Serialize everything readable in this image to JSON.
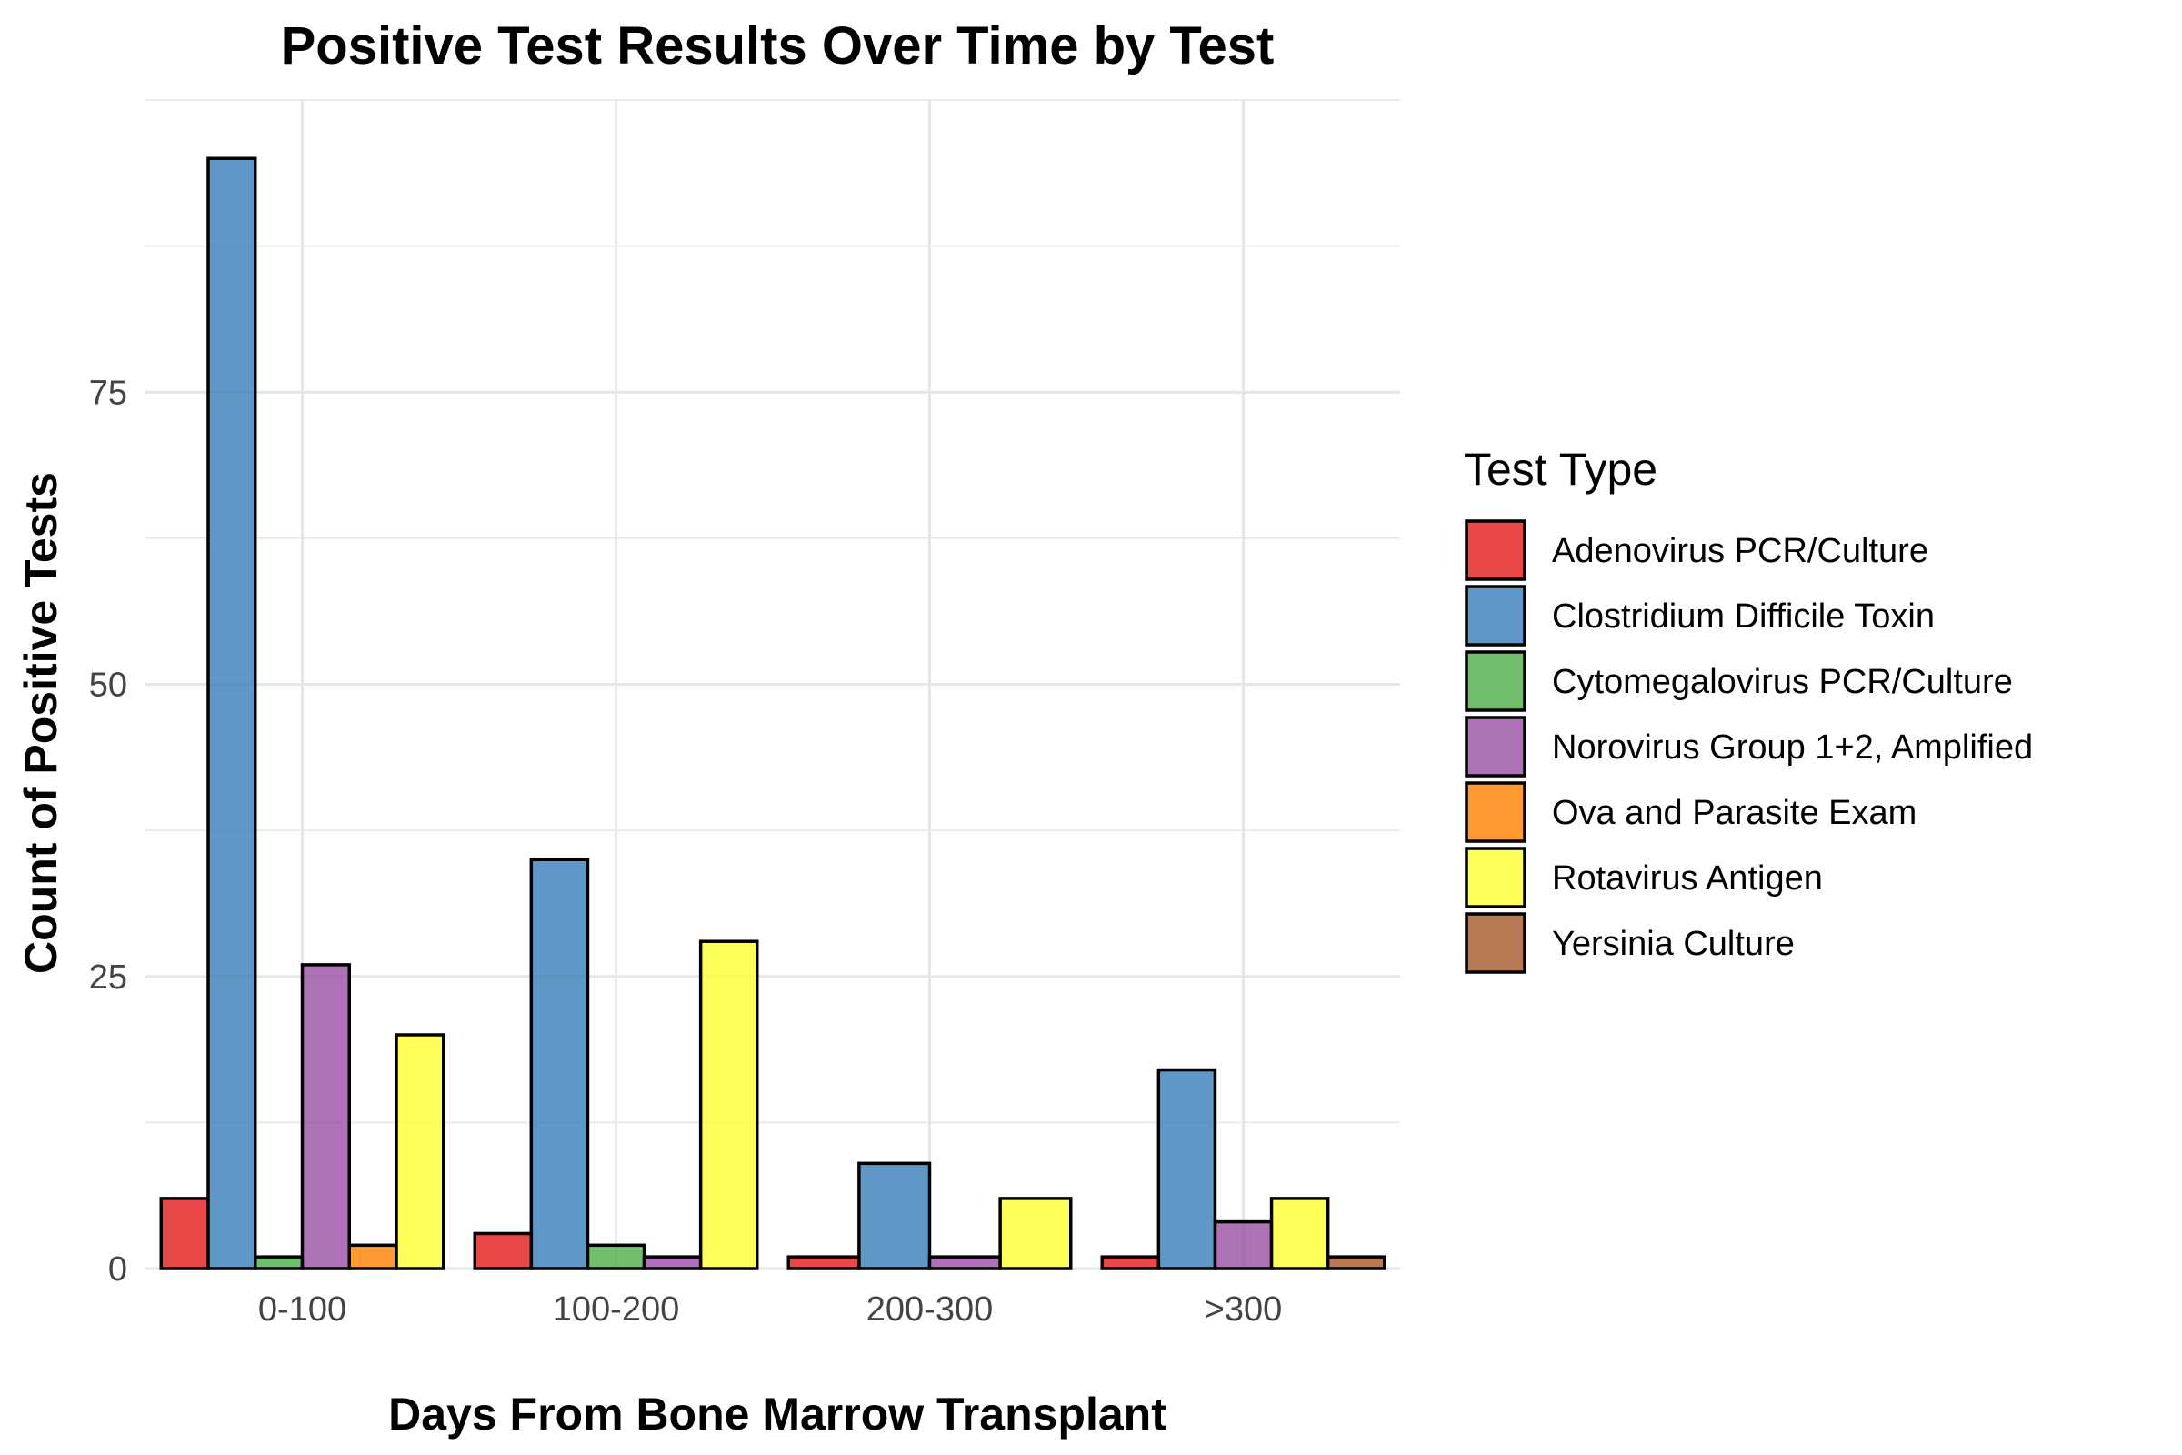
{
  "chart_data": {
    "type": "bar",
    "title": "Positive Test Results Over Time by Test",
    "xlabel": "Days From Bone Marrow Transplant",
    "ylabel": "Count of Positive Tests",
    "categories": [
      "0-100",
      "100-200",
      "200-300",
      ">300"
    ],
    "yticks": [
      0,
      25,
      50,
      75
    ],
    "ylim": [
      0,
      100
    ],
    "grid": true,
    "legend": {
      "title": "Test Type",
      "position": "right"
    },
    "series": [
      {
        "name": "Adenovirus PCR/Culture",
        "color": "#e41a1c",
        "values": [
          6,
          3,
          1,
          1
        ]
      },
      {
        "name": "Clostridium Difficile Toxin",
        "color": "#377eb8",
        "values": [
          95,
          35,
          9,
          17
        ]
      },
      {
        "name": "Cytomegalovirus PCR/Culture",
        "color": "#4daf4a",
        "values": [
          1,
          2,
          null,
          null
        ]
      },
      {
        "name": "Norovirus Group 1+2, Amplified",
        "color": "#984ea3",
        "values": [
          26,
          1,
          1,
          4
        ]
      },
      {
        "name": "Ova and Parasite Exam",
        "color": "#ff7f00",
        "values": [
          2,
          null,
          null,
          null
        ]
      },
      {
        "name": "Rotavirus Antigen",
        "color": "#ffff33",
        "values": [
          20,
          28,
          6,
          6
        ]
      },
      {
        "name": "Yersinia Culture",
        "color": "#a65628",
        "values": [
          null,
          null,
          null,
          1
        ]
      }
    ]
  }
}
